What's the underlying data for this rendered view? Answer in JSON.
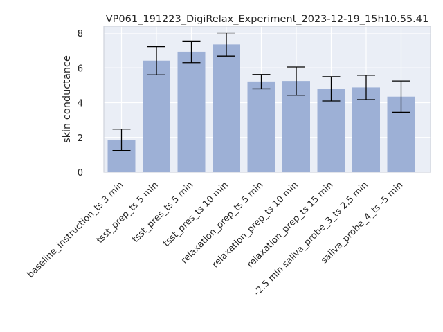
{
  "chart_data": {
    "type": "bar",
    "title": "VP061_191223_DigiRelax_Experiment_2023-12-19_15h10.55.41",
    "xlabel": "",
    "ylabel": "skin conductance",
    "categories": [
      "baseline_instruction_ts 3 min",
      "tsst_prep_ts 5 min",
      "tsst_pres_ts 5 min",
      "tsst_pres_ts 10 min",
      "relaxation_prep_ts 5 min",
      "relaxation_prep_ts 10 min",
      "relaxation_prep_ts 15 min",
      "-2.5 min saliva_probe_3_ts 2.5 min",
      "saliva_probe_4_ts -5 min"
    ],
    "values": [
      1.85,
      6.42,
      6.93,
      7.35,
      5.22,
      5.25,
      4.8,
      4.88,
      4.35
    ],
    "error_low": [
      1.25,
      5.6,
      6.3,
      6.68,
      4.8,
      4.43,
      4.1,
      4.18,
      3.45
    ],
    "error_high": [
      2.48,
      7.22,
      7.55,
      8.02,
      5.62,
      6.05,
      5.5,
      5.58,
      5.25
    ],
    "yticks": [
      "0",
      "2",
      "4",
      "6",
      "8"
    ],
    "ylim": [
      0,
      8.4
    ],
    "grid": true,
    "colors": {
      "bar": "#9db0d6",
      "plot_bg": "#eaeef6",
      "grid": "#ffffff",
      "error": "#000000",
      "text": "#262626"
    }
  }
}
